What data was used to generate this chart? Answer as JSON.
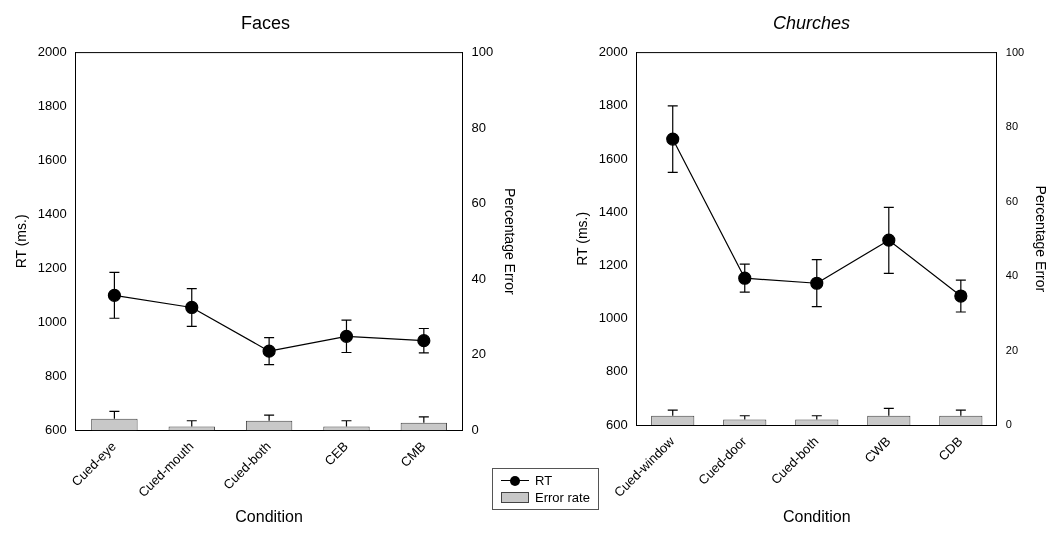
{
  "chart_data": [
    {
      "type": "line",
      "title": "Faces",
      "xlabel": "Condition",
      "ylabel": "RT (ms.)",
      "y2label": "Percentage Error",
      "categories": [
        "Cued-eye",
        "Cued-mouth",
        "Cued-both",
        "CEB",
        "CMB"
      ],
      "series": [
        {
          "name": "RT",
          "color": "#000000",
          "values": [
            1100,
            1055,
            893,
            948,
            932
          ],
          "errors": [
            85,
            70,
            50,
            60,
            45
          ]
        },
        {
          "name": "Error rate",
          "type": "bar",
          "axis": "y2",
          "color": "#c8c8c8",
          "values": [
            3,
            1,
            2.5,
            1,
            2
          ],
          "errors": [
            [
              3,
              5
            ],
            [
              1,
              2.5
            ],
            [
              2.5,
              4
            ],
            [
              1,
              2.5
            ],
            [
              2,
              3.5
            ]
          ]
        }
      ],
      "ylim": [
        600,
        2000
      ],
      "yticks": [
        600,
        800,
        1000,
        1200,
        1400,
        1600,
        1800,
        2000
      ],
      "y2lim": [
        0,
        100
      ],
      "y2ticks": [
        0,
        20,
        40,
        60,
        80,
        100
      ],
      "grid": false,
      "legend": "bottom right",
      "marker": "circle"
    },
    {
      "type": "line",
      "title": "Churches",
      "xlabel": "Condition",
      "ylabel": "RT (ms.)",
      "y2label": "Percentage Error",
      "categories": [
        "Cued-window",
        "Cued-door",
        "Cued-both",
        "CWB",
        "CDB"
      ],
      "series": [
        {
          "color": "#000000",
          "values": [
            1675,
            1152,
            1133,
            1295,
            1085
          ],
          "errors": [
            [
              1550,
              1800
            ],
            [
              1100,
              1205
            ],
            [
              1045,
              1222
            ],
            [
              1170,
              1418
            ],
            [
              1025,
              1145
            ]
          ]
        },
        {
          "type": "bar",
          "axis": "y2",
          "color": "#c8c8c8",
          "values": [
            2.5,
            1.5,
            1.5,
            2.5,
            2.5
          ],
          "errors": [
            [
              2.5,
              4
            ],
            [
              1.5,
              2.5
            ],
            [
              1.5,
              2.5
            ],
            [
              2.5,
              4.5
            ],
            [
              2.5,
              4
            ]
          ]
        }
      ],
      "ylim": [
        600,
        2000
      ],
      "yticks": [
        600,
        800,
        1000,
        1200,
        1400,
        1600,
        1800,
        2000
      ],
      "y2lim": [
        0,
        100
      ],
      "y2ticks": [
        0,
        20,
        40,
        60,
        80,
        100
      ],
      "grid": false,
      "marker": "circle"
    }
  ]
}
